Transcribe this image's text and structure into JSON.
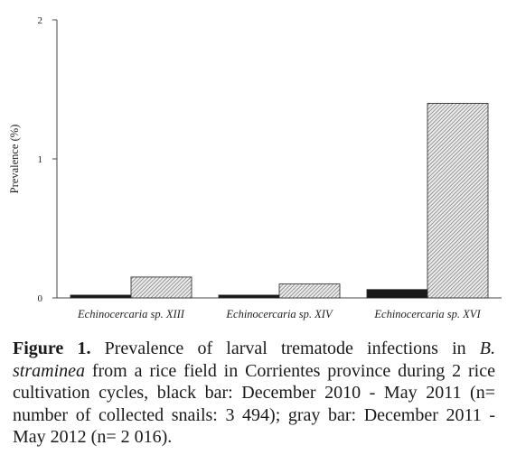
{
  "chart_data": {
    "type": "bar",
    "title": "",
    "xlabel": "",
    "ylabel": "Prevalence (%)",
    "ylim": [
      0,
      2
    ],
    "yticks": [
      "0",
      "1",
      "2"
    ],
    "categories": [
      "Echinocercaria sp. XIII",
      "Echinocercaria sp. XIV",
      "Echinocercaria sp. XVI"
    ],
    "series": [
      {
        "values": [
          0.02,
          0.02,
          0.06
        ],
        "color": "#1a1a1a",
        "pattern": "solid"
      },
      {
        "values": [
          0.15,
          0.1,
          1.4
        ],
        "color": "#d9d9d9",
        "pattern": "diagonal-hatch"
      }
    ],
    "grid": false,
    "legend": "none"
  },
  "caption": {
    "lead": "Figure 1.",
    "part1": " Prevalence of larval trematode infections in ",
    "italic1": "B. straminea",
    "part2": " from a rice field in Corrientes province during 2 rice cultivation cycles, black bar: December 2010 - May 2011 (n= number of collected snails: 3 494); gray bar: December 2011 - May 2012 (n= 2 016)."
  }
}
